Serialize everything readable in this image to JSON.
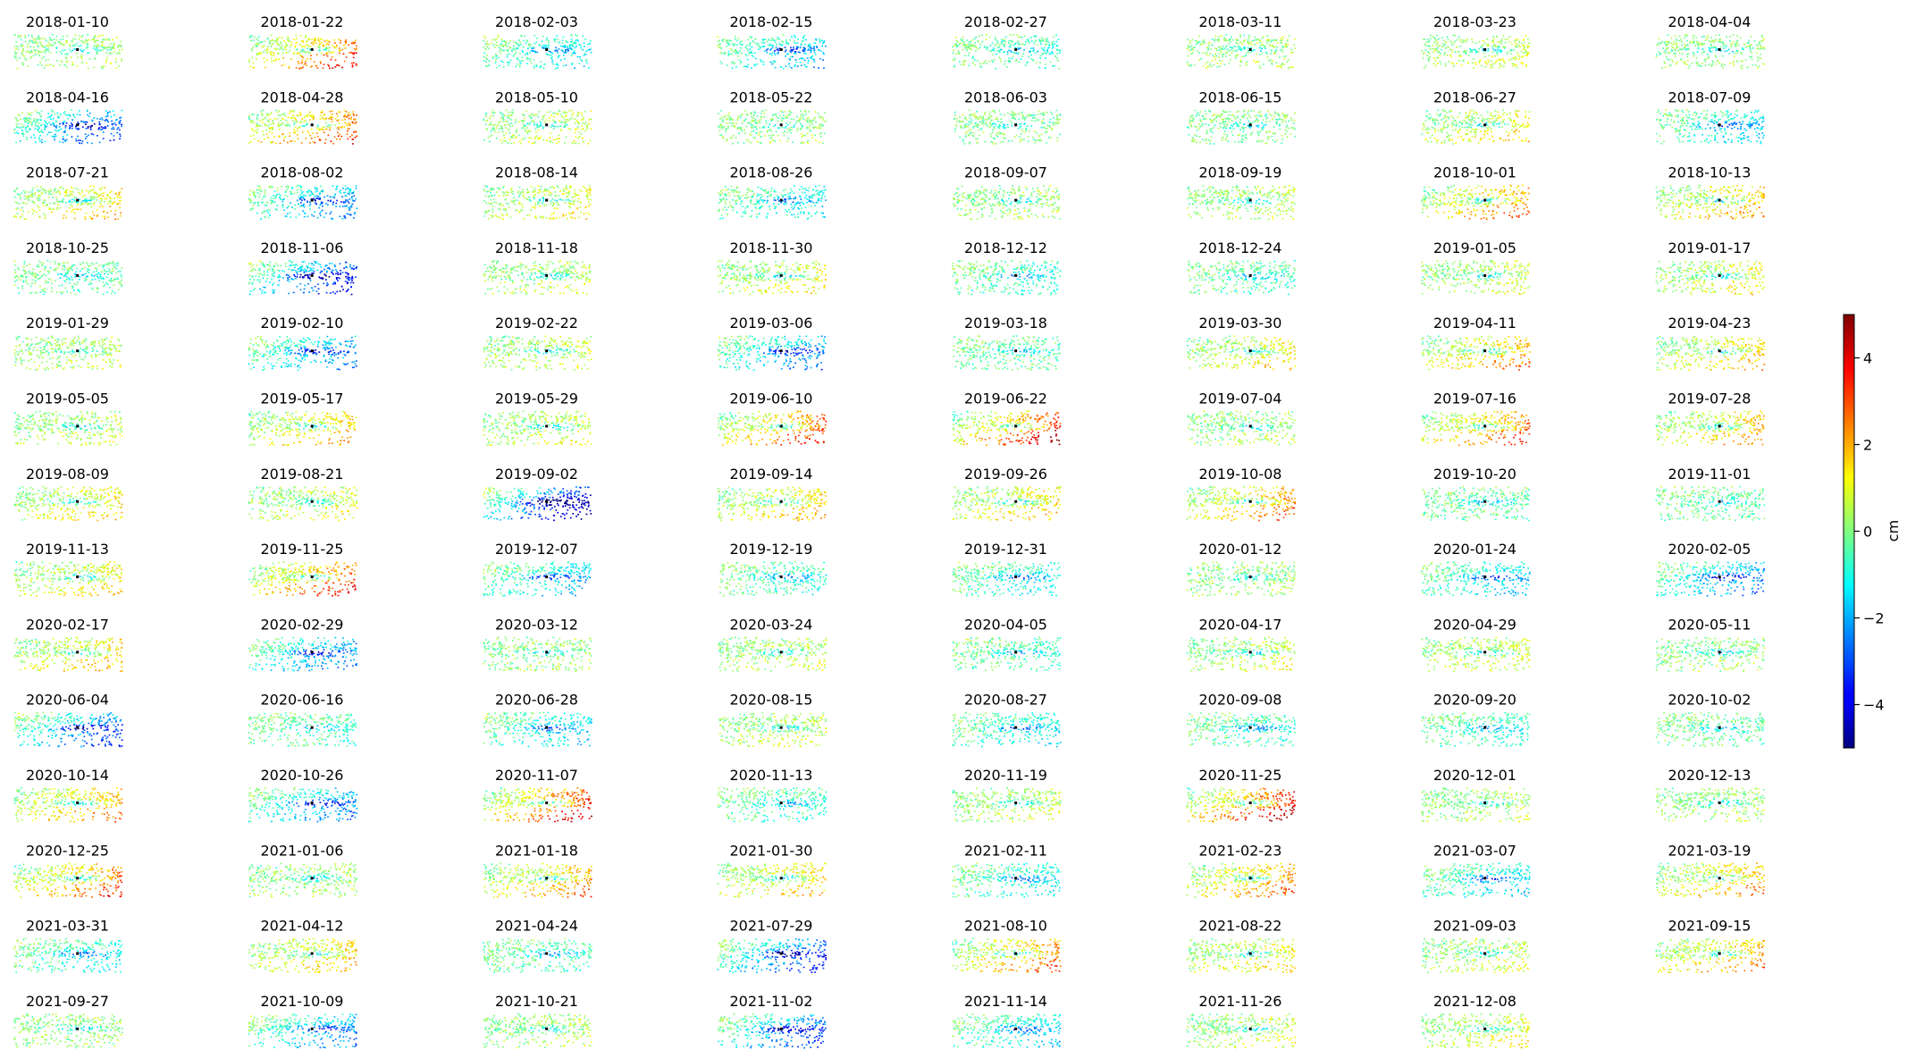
{
  "chart_data": {
    "type": "heatmap",
    "title": "",
    "colormap": "jet",
    "colorbar": {
      "label": "cm",
      "vmin": -5,
      "vmax": 5,
      "ticks": [
        -4,
        -2,
        0,
        2,
        4
      ],
      "tick_labels": [
        "−4",
        "−2",
        "0",
        "2",
        "4"
      ]
    },
    "grid": {
      "columns": 8,
      "rows": 14
    },
    "dates": [
      "2018-01-10",
      "2018-01-22",
      "2018-02-03",
      "2018-02-15",
      "2018-02-27",
      "2018-03-11",
      "2018-03-23",
      "2018-04-04",
      "2018-04-16",
      "2018-04-28",
      "2018-05-10",
      "2018-05-22",
      "2018-06-03",
      "2018-06-15",
      "2018-06-27",
      "2018-07-09",
      "2018-07-21",
      "2018-08-02",
      "2018-08-14",
      "2018-08-26",
      "2018-09-07",
      "2018-09-19",
      "2018-10-01",
      "2018-10-13",
      "2018-10-25",
      "2018-11-06",
      "2018-11-18",
      "2018-11-30",
      "2018-12-12",
      "2018-12-24",
      "2019-01-05",
      "2019-01-17",
      "2019-01-29",
      "2019-02-10",
      "2019-02-22",
      "2019-03-06",
      "2019-03-18",
      "2019-03-30",
      "2019-04-11",
      "2019-04-23",
      "2019-05-05",
      "2019-05-17",
      "2019-05-29",
      "2019-06-10",
      "2019-06-22",
      "2019-07-04",
      "2019-07-16",
      "2019-07-28",
      "2019-08-09",
      "2019-08-21",
      "2019-09-02",
      "2019-09-14",
      "2019-09-26",
      "2019-10-08",
      "2019-10-20",
      "2019-11-01",
      "2019-11-13",
      "2019-11-25",
      "2019-12-07",
      "2019-12-19",
      "2019-12-31",
      "2020-01-12",
      "2020-01-24",
      "2020-02-05",
      "2020-02-17",
      "2020-02-29",
      "2020-03-12",
      "2020-03-24",
      "2020-04-05",
      "2020-04-17",
      "2020-04-29",
      "2020-05-11",
      "2020-06-04",
      "2020-06-16",
      "2020-06-28",
      "2020-08-15",
      "2020-08-27",
      "2020-09-08",
      "2020-09-20",
      "2020-10-02",
      "2020-10-14",
      "2020-10-26",
      "2020-11-07",
      "2020-11-13",
      "2020-11-19",
      "2020-11-25",
      "2020-12-01",
      "2020-12-13",
      "2020-12-25",
      "2021-01-06",
      "2021-01-18",
      "2021-01-30",
      "2021-02-11",
      "2021-02-23",
      "2021-03-07",
      "2021-03-19",
      "2021-03-31",
      "2021-04-12",
      "2021-04-24",
      "2021-07-29",
      "2021-08-10",
      "2021-08-22",
      "2021-09-03",
      "2021-09-15",
      "2021-09-27",
      "2021-10-09",
      "2021-10-21",
      "2021-11-02",
      "2021-11-14",
      "2021-11-26",
      "2021-12-08"
    ],
    "panel_bias": [
      0.3,
      2.2,
      -0.8,
      -1.2,
      -0.4,
      0.4,
      0.6,
      0.2,
      -2.0,
      2.0,
      0.6,
      0.2,
      0.0,
      0.0,
      1.0,
      -1.0,
      1.2,
      -1.5,
      0.8,
      -0.8,
      0.3,
      0.4,
      1.8,
      1.4,
      -0.2,
      -2.4,
      0.5,
      0.8,
      -0.6,
      -0.4,
      0.6,
      0.9,
      0.5,
      -1.6,
      0.6,
      -1.6,
      -0.2,
      1.0,
      1.6,
      1.2,
      0.5,
      1.4,
      0.6,
      2.2,
      2.6,
      0.3,
      2.0,
      1.5,
      1.0,
      0.8,
      -3.0,
      1.2,
      1.2,
      1.8,
      -0.2,
      -0.2,
      1.0,
      2.2,
      -1.2,
      -0.6,
      -0.8,
      0.3,
      -1.2,
      -1.6,
      1.2,
      -1.6,
      0.2,
      0.5,
      -0.4,
      0.6,
      0.6,
      0.2,
      -2.0,
      -0.4,
      -1.0,
      0.6,
      -0.8,
      -0.5,
      -0.6,
      -0.2,
      1.6,
      -1.6,
      2.6,
      -0.5,
      0.5,
      2.8,
      0.4,
      0.3,
      2.0,
      0.3,
      1.6,
      1.2,
      -0.8,
      1.8,
      -1.0,
      1.5,
      -0.8,
      1.2,
      -0.4,
      -2.2,
      1.8,
      1.0,
      0.6,
      1.6,
      0.2,
      -1.4,
      0.4,
      -2.0,
      -1.0,
      0.6,
      0.8
    ]
  }
}
